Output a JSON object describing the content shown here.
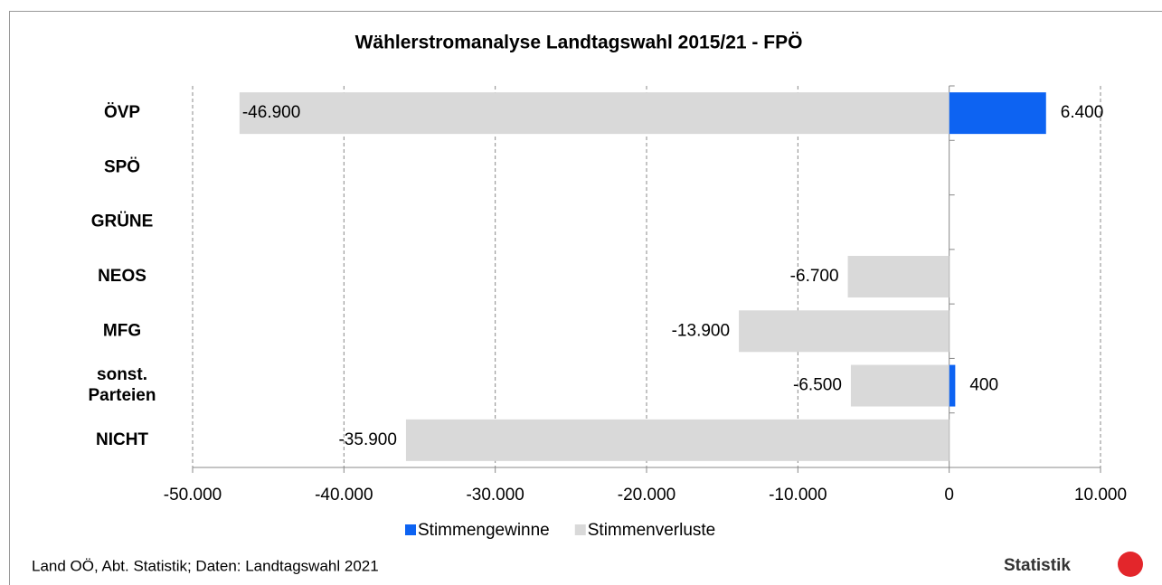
{
  "chart_data": {
    "type": "bar",
    "orientation": "horizontal",
    "stacked": true,
    "title": "Wählerstromanalyse Landtagswahl 2015/21 - FPÖ",
    "categories": [
      "ÖVP",
      "SPÖ",
      "GRÜNE",
      "NEOS",
      "MFG",
      "sonst. Parteien",
      "NICHT"
    ],
    "series": [
      {
        "name": "Stimmengewinne",
        "color": "#0d63f2",
        "values": [
          6400,
          null,
          null,
          null,
          null,
          400,
          null
        ],
        "value_labels": [
          "6.400",
          null,
          null,
          null,
          null,
          "400",
          null
        ]
      },
      {
        "name": "Stimmenverluste",
        "color": "#d9d9d9",
        "values": [
          -46900,
          null,
          null,
          -6700,
          -13900,
          -6500,
          -35900
        ],
        "value_labels": [
          "-46.900",
          null,
          null,
          "-6.700",
          "-13.900",
          "-6.500",
          "-35.900"
        ]
      }
    ],
    "xlim": [
      -50000,
      10000
    ],
    "xticks": [
      {
        "value": -50000,
        "label": "-50.000"
      },
      {
        "value": -40000,
        "label": "-40.000"
      },
      {
        "value": -30000,
        "label": "-30.000"
      },
      {
        "value": -20000,
        "label": "-20.000"
      },
      {
        "value": -10000,
        "label": "-10.000"
      },
      0,
      {
        "value": 10000,
        "label": "10.000"
      }
    ],
    "grid": true,
    "legend": "bottom",
    "footnote": "Land OÖ, Abt. Statistik; Daten: Landtagswahl 2021",
    "logo": "Statistik"
  }
}
